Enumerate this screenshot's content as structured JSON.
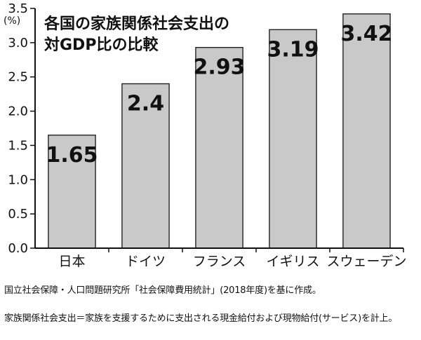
{
  "chart_data": {
    "type": "bar",
    "title_lines": [
      "各国の家族関係社会支出の",
      "対GDP比の比較"
    ],
    "ylabel_unit": "(%)",
    "ylim": [
      0,
      3.5
    ],
    "y_ticks": [
      "0.0",
      "0.5",
      "1.0",
      "1.5",
      "2.0",
      "2.5",
      "3.0",
      "3.5"
    ],
    "categories": [
      "日本",
      "ドイツ",
      "フランス",
      "イギリス",
      "スウェーデン"
    ],
    "values": [
      1.65,
      2.4,
      2.93,
      3.19,
      3.42
    ],
    "value_labels": [
      "1.65",
      "2.4",
      "2.93",
      "3.19",
      "3.42"
    ],
    "grid": false,
    "colors": {
      "bar": "#c9c9c9",
      "text": "#111111",
      "axis": "#111111"
    }
  },
  "notes": {
    "source_line_1": "国立社会保障・人口問題研究所「社会保障費用統計」(2018年度)を基に作成。",
    "source_line_2": "家族関係社会支出＝家族を支援するために支出される現金給付および現物給付(サービス)を計上。"
  }
}
